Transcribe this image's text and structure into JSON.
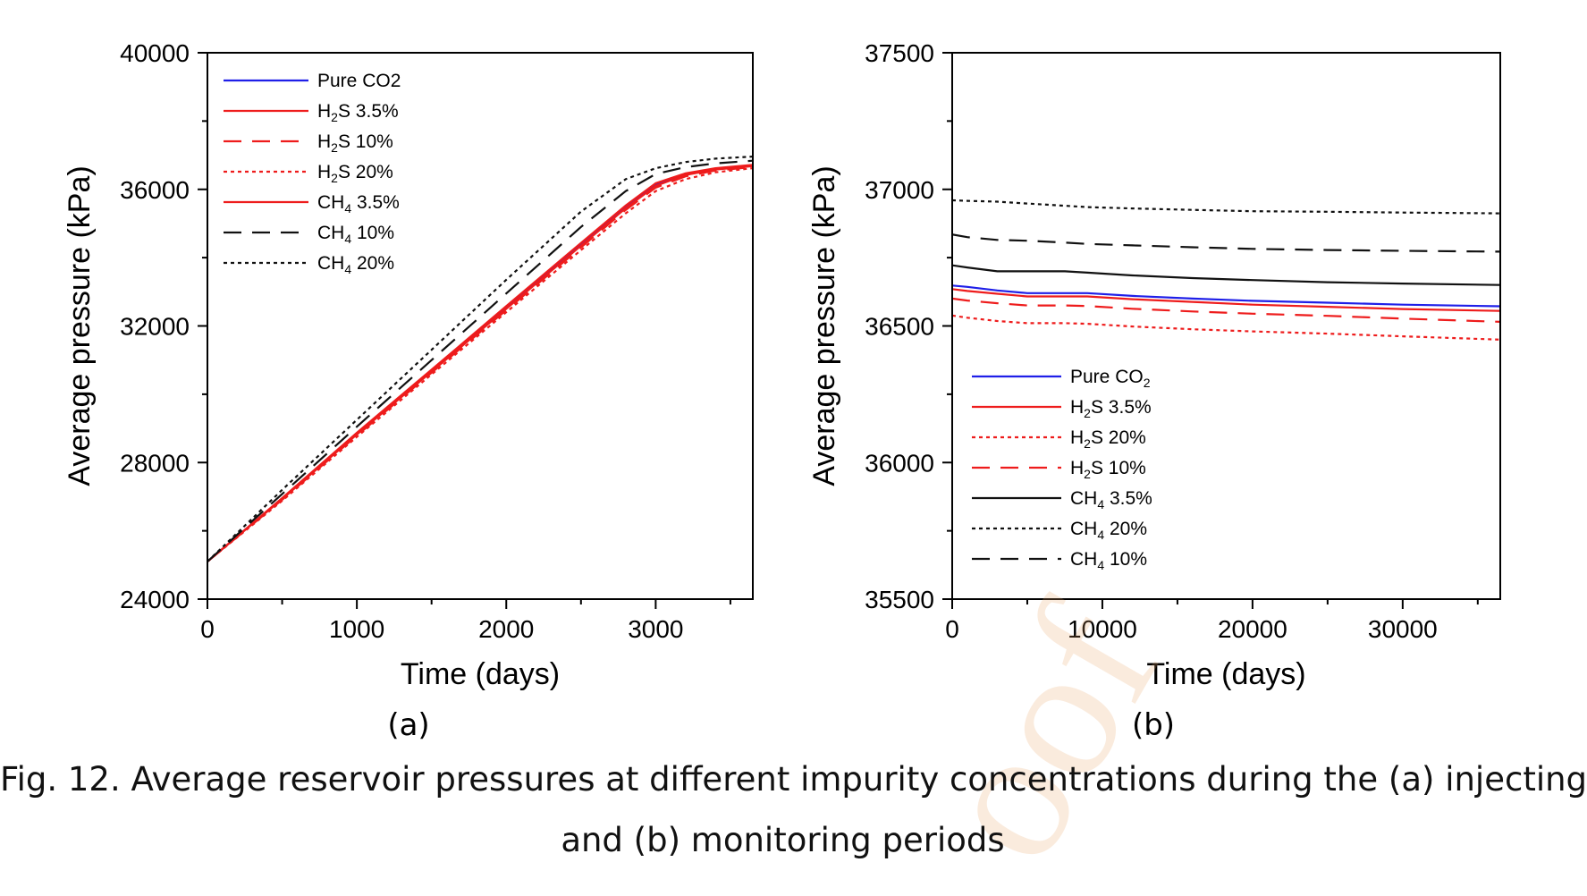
{
  "chart_data": [
    {
      "type": "line",
      "panel_label": "(a)",
      "xlabel": "Time (days)",
      "ylabel": "Average pressure (kPa)",
      "xlim": [
        0,
        3650
      ],
      "ylim": [
        24000,
        40000
      ],
      "xticks": [
        0,
        1000,
        2000,
        3000
      ],
      "yticks": [
        24000,
        28000,
        32000,
        36000,
        40000
      ],
      "x": [
        0,
        500,
        1000,
        1500,
        2000,
        2500,
        2800,
        3000,
        3200,
        3400,
        3650
      ],
      "legend": {
        "placement": "top-left"
      },
      "series": [
        {
          "name": "Pure CO2",
          "label_main": "Pure CO2",
          "label_sub": "",
          "label_tail": "",
          "color": "#1f1fe8",
          "dash": "solid",
          "values": [
            25100,
            26950,
            28850,
            30700,
            32550,
            34400,
            35500,
            36150,
            36450,
            36600,
            36700
          ]
        },
        {
          "name": "H2S 3.5%",
          "label_main": "H",
          "label_sub": "2",
          "label_tail": "S 3.5%",
          "color": "#ee1c1c",
          "dash": "solid",
          "values": [
            25100,
            26930,
            28820,
            30660,
            32500,
            34350,
            35450,
            36100,
            36420,
            36580,
            36680
          ]
        },
        {
          "name": "H2S 10%",
          "label_main": "H",
          "label_sub": "2",
          "label_tail": "S 10%",
          "color": "#ee1c1c",
          "dash": "dash",
          "values": [
            25100,
            26910,
            28790,
            30630,
            32460,
            34300,
            35400,
            36050,
            36380,
            36550,
            36650
          ]
        },
        {
          "name": "H2S 20%",
          "label_main": "H",
          "label_sub": "2",
          "label_tail": "S 20%",
          "color": "#ee1c1c",
          "dash": "dot",
          "values": [
            25100,
            26880,
            28750,
            30580,
            32400,
            34220,
            35300,
            35950,
            36300,
            36500,
            36620
          ]
        },
        {
          "name": "CH4 3.5%",
          "label_main": "CH",
          "label_sub": "4",
          "label_tail": " 3.5%",
          "color": "#ee1c1c",
          "dash": "solid",
          "values": [
            25100,
            26960,
            28870,
            30720,
            32580,
            34430,
            35530,
            36180,
            36470,
            36620,
            36720
          ]
        },
        {
          "name": "CH4 10%",
          "label_main": "CH",
          "label_sub": "4",
          "label_tail": " 10%",
          "color": "#111111",
          "dash": "dash",
          "values": [
            25100,
            27080,
            29050,
            31000,
            32950,
            34900,
            35950,
            36450,
            36650,
            36760,
            36840
          ]
        },
        {
          "name": "CH4 20%",
          "label_main": "CH",
          "label_sub": "4",
          "label_tail": " 20%",
          "color": "#111111",
          "dash": "dot",
          "values": [
            25100,
            27200,
            29250,
            31300,
            33350,
            35350,
            36300,
            36620,
            36800,
            36900,
            36960
          ]
        }
      ]
    },
    {
      "type": "line",
      "panel_label": "(b)",
      "xlabel": "Time (days)",
      "ylabel": "Average pressure (kPa)",
      "xlim": [
        0,
        36500
      ],
      "ylim": [
        35500,
        37500
      ],
      "xticks": [
        0,
        10000,
        20000,
        30000
      ],
      "yticks": [
        35500,
        36000,
        36500,
        37000,
        37500
      ],
      "x": [
        0,
        1000,
        3000,
        5000,
        7500,
        9000,
        12000,
        16000,
        20000,
        25000,
        30000,
        36500
      ],
      "legend": {
        "placement": "lower-left"
      },
      "series": [
        {
          "name": "Pure CO2",
          "label_main": "Pure CO",
          "label_sub": "2",
          "label_tail": "",
          "color": "#1f1fe8",
          "dash": "solid",
          "values": [
            36648,
            36643,
            36630,
            36620,
            36620,
            36620,
            36610,
            36600,
            36592,
            36585,
            36578,
            36572
          ]
        },
        {
          "name": "H2S 3.5%",
          "label_main": "H",
          "label_sub": "2",
          "label_tail": "S 3.5%",
          "color": "#ee1c1c",
          "dash": "solid",
          "values": [
            36635,
            36628,
            36618,
            36608,
            36608,
            36608,
            36598,
            36588,
            36578,
            36570,
            36562,
            36555
          ]
        },
        {
          "name": "H2S 20%",
          "label_main": "H",
          "label_sub": "2",
          "label_tail": "S 20%",
          "color": "#ee1c1c",
          "dash": "dot",
          "values": [
            36538,
            36530,
            36518,
            36510,
            36510,
            36508,
            36498,
            36488,
            36480,
            36472,
            36462,
            36450
          ]
        },
        {
          "name": "H2S 10%",
          "label_main": "H",
          "label_sub": "2",
          "label_tail": "S 10%",
          "color": "#ee1c1c",
          "dash": "dash",
          "values": [
            36600,
            36593,
            36583,
            36575,
            36575,
            36573,
            36563,
            36553,
            36545,
            36537,
            36527,
            36515
          ]
        },
        {
          "name": "CH4 3.5%",
          "label_main": "CH",
          "label_sub": "4",
          "label_tail": " 3.5%",
          "color": "#111111",
          "dash": "solid",
          "values": [
            36722,
            36714,
            36700,
            36700,
            36700,
            36695,
            36685,
            36675,
            36668,
            36660,
            36655,
            36650
          ]
        },
        {
          "name": "CH4 20%",
          "label_main": "CH",
          "label_sub": "4",
          "label_tail": " 20%",
          "color": "#111111",
          "dash": "dot",
          "values": [
            36960,
            36958,
            36955,
            36948,
            36940,
            36935,
            36930,
            36925,
            36920,
            36918,
            36915,
            36912
          ]
        },
        {
          "name": "CH4 10%",
          "label_main": "CH",
          "label_sub": "4",
          "label_tail": " 10%",
          "color": "#111111",
          "dash": "dash",
          "values": [
            36835,
            36825,
            36815,
            36812,
            36805,
            36800,
            36795,
            36788,
            36782,
            36778,
            36775,
            36772
          ]
        }
      ]
    }
  ],
  "caption": {
    "line1": "Fig. 12. Average reservoir pressures at different impurity concentrations during the (a) injecting",
    "line2": "and (b) monitoring periods"
  }
}
